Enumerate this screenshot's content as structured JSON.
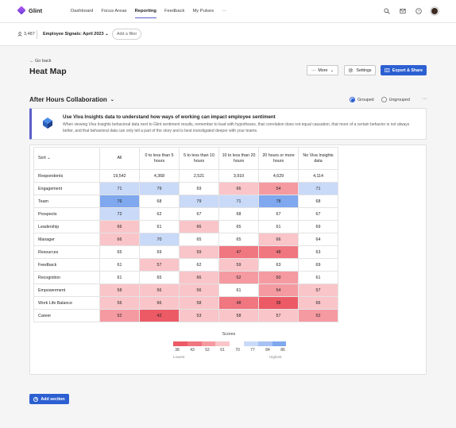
{
  "app": {
    "name": "Glint",
    "nav": [
      "Dashboard",
      "Focus Areas",
      "Reporting",
      "Feedback",
      "My Pulses"
    ],
    "nav_active_index": 2,
    "nav_more": "···",
    "icons": [
      "search-icon",
      "mail-icon",
      "help-icon",
      "avatar"
    ]
  },
  "filterbar": {
    "respondent_count": "3,487",
    "signal": "Employee Signals: April 2023",
    "add_filter": "Add a filter"
  },
  "header": {
    "go_back": "Go back",
    "title": "Heat Map",
    "more_label": "More",
    "settings_label": "Settings",
    "export_label": "Export & Share"
  },
  "section": {
    "title": "After Hours Collaboration",
    "grouped_label": "Grouped",
    "ungrouped_label": "Ungrouped",
    "selected": "grouped",
    "more": "···"
  },
  "banner": {
    "title": "Use Viva Insights data to understand how ways of working can impact employee sentiment",
    "body": "When viewing Viva Insights behavioral data next to Glint sentiment results, remember to lead with hypotheses, that correlation does not equal causation, that more of a certain behavior is not always better, and that behavioral data can only tell a part of the story and is best investigated deeper with your teams."
  },
  "table": {
    "sort_label": "Sort",
    "columns": [
      "All",
      "0 to less than 5 hours",
      "5 to less than 10 hours",
      "10 to less than 20 hours",
      "20 hours or more hours",
      "No Viva Insights data"
    ],
    "respondents_label": "Respondents",
    "respondents": [
      "19,542",
      "4,368",
      "2,521",
      "3,910",
      "4,629",
      "4,114"
    ],
    "rows": [
      {
        "label": "Engagement",
        "values": [
          71,
          79,
          69,
          66,
          54,
          71
        ]
      },
      {
        "label": "Team",
        "values": [
          76,
          68,
          79,
          71,
          78,
          68
        ]
      },
      {
        "label": "Prospects",
        "values": [
          72,
          62,
          67,
          68,
          67,
          67
        ]
      },
      {
        "label": "Leadership",
        "values": [
          66,
          61,
          66,
          65,
          61,
          69
        ]
      },
      {
        "label": "Manager",
        "values": [
          66,
          70,
          65,
          65,
          66,
          64
        ]
      },
      {
        "label": "Resources",
        "values": [
          65,
          69,
          59,
          47,
          48,
          63
        ]
      },
      {
        "label": "Feedback",
        "values": [
          61,
          57,
          62,
          59,
          63,
          69
        ]
      },
      {
        "label": "Recognition",
        "values": [
          61,
          65,
          66,
          52,
          50,
          61
        ]
      },
      {
        "label": "Empowerment",
        "values": [
          58,
          56,
          56,
          61,
          54,
          57
        ]
      },
      {
        "label": "Work Life Balance",
        "values": [
          56,
          66,
          58,
          48,
          38,
          66
        ]
      },
      {
        "label": "Career",
        "values": [
          52,
          42,
          53,
          58,
          57,
          52
        ]
      }
    ],
    "cell_colors": {
      "71": "#c9d9f8",
      "79": "#c9d9f8",
      "69": "",
      "66": "#f9c5c9",
      "54": "#f59aa1",
      "76": "#7fa8ee",
      "68": "",
      "78": "#7fa8ee",
      "72": "#c9d9f8",
      "62": "",
      "67": "",
      "61": "",
      "65": "",
      "70": "#c9d9f8",
      "64": "",
      "59": "#f9c5c9",
      "47": "#f07680",
      "48": "#f07680",
      "63": "",
      "57": "#f9c5c9",
      "52": "#f59aa1",
      "50": "#f59aa1",
      "58": "#f9c5c9",
      "56": "#f9c5c9",
      "53": "#f9c5c9",
      "38": "#ec5a66",
      "42": "#ec5a66"
    }
  },
  "legend": {
    "title": "Scores",
    "ticks": [
      "38",
      "43",
      "52",
      "61",
      "70",
      "77",
      "84",
      "86"
    ],
    "colors": [
      "#ec5a66",
      "#f07680",
      "#f59aa1",
      "#f9c5c9",
      "#ffffff",
      "#c9d9f8",
      "#a7c1f3",
      "#7fa8ee"
    ],
    "low_label": "Lowest",
    "high_label": "Highest"
  },
  "add_section_label": "Add section"
}
